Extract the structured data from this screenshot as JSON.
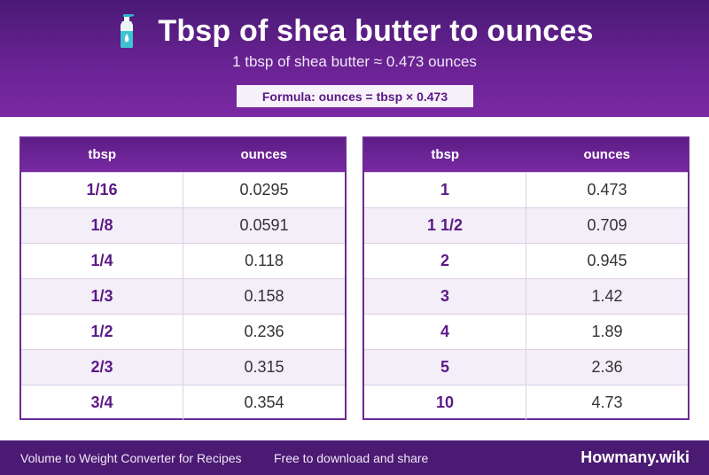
{
  "header": {
    "icon": "lotion-bottle-icon",
    "title": "Tbsp of shea butter to ounces",
    "subtitle": "1 tbsp of shea butter ≈ 0.473 ounces",
    "formula": "Formula: ounces = tbsp × 0.473"
  },
  "colors": {
    "header_dark": "#4a1a75",
    "header_light": "#7a2aa3",
    "accent_text": "#5b1a86",
    "row_alt": "#f4eef8"
  },
  "tables": [
    {
      "columns": [
        "tbsp",
        "ounces"
      ],
      "rows": [
        {
          "tbsp": "1/16",
          "ounces": "0.0295"
        },
        {
          "tbsp": "1/8",
          "ounces": "0.0591"
        },
        {
          "tbsp": "1/4",
          "ounces": "0.118"
        },
        {
          "tbsp": "1/3",
          "ounces": "0.158"
        },
        {
          "tbsp": "1/2",
          "ounces": "0.236"
        },
        {
          "tbsp": "2/3",
          "ounces": "0.315"
        },
        {
          "tbsp": "3/4",
          "ounces": "0.354"
        }
      ]
    },
    {
      "columns": [
        "tbsp",
        "ounces"
      ],
      "rows": [
        {
          "tbsp": "1",
          "ounces": "0.473"
        },
        {
          "tbsp": "1 1/2",
          "ounces": "0.709"
        },
        {
          "tbsp": "2",
          "ounces": "0.945"
        },
        {
          "tbsp": "3",
          "ounces": "1.42"
        },
        {
          "tbsp": "4",
          "ounces": "1.89"
        },
        {
          "tbsp": "5",
          "ounces": "2.36"
        },
        {
          "tbsp": "10",
          "ounces": "4.73"
        }
      ]
    }
  ],
  "footer": {
    "left": "Volume to Weight Converter for Recipes",
    "middle": "Free to download and share",
    "brand": "Howmany.wiki"
  }
}
